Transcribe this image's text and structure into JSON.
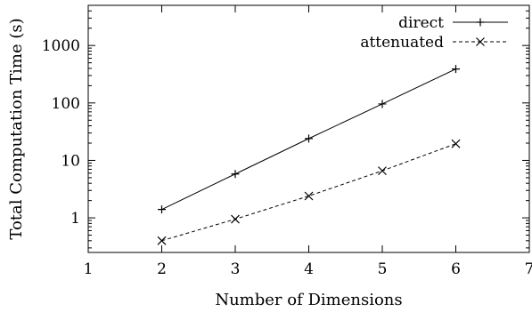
{
  "chart_data": {
    "type": "line",
    "xlabel": "Number of Dimensions",
    "ylabel": "Total Computation Time (s)",
    "xlim": [
      1,
      7
    ],
    "ylim": [
      0.25,
      5000
    ],
    "yscale": "log",
    "xticks": [
      1,
      2,
      3,
      4,
      5,
      6,
      7
    ],
    "xtick_labels": [
      "1",
      "2",
      "3",
      "4",
      "5",
      "6",
      "7"
    ],
    "yticks": [
      1,
      10,
      100,
      1000
    ],
    "ytick_labels": [
      "1",
      "10",
      "100",
      "1000"
    ],
    "grid": false,
    "legend_position": "top-right",
    "series": [
      {
        "name": "direct",
        "marker": "plus",
        "line_style": "solid",
        "x": [
          2,
          3,
          4,
          5,
          6
        ],
        "y": [
          1.4,
          5.8,
          24,
          96,
          390
        ]
      },
      {
        "name": "attenuated",
        "marker": "cross",
        "line_style": "dashed",
        "x": [
          2,
          3,
          4,
          5,
          6
        ],
        "y": [
          0.4,
          0.95,
          2.4,
          6.6,
          19.5
        ]
      }
    ]
  }
}
